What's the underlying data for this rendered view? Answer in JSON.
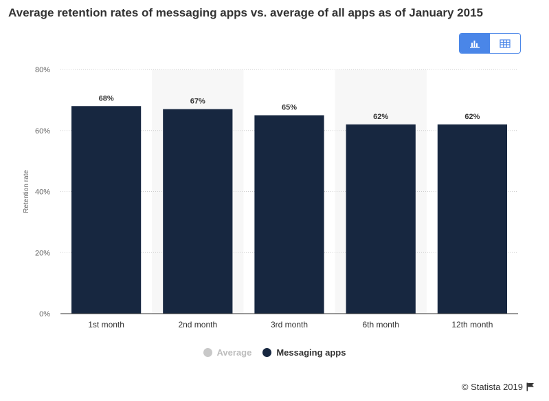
{
  "title": "Average retention rates of messaging apps vs. average of all apps as of January 2015",
  "credit": "© Statista 2019",
  "toolbar": {
    "active_view": "chart",
    "icons": [
      "bar-chart-icon",
      "table-icon"
    ],
    "accent_color": "#4a86e8"
  },
  "legend": [
    {
      "name": "Average",
      "color": "#c8c8c8",
      "text_color": "#bdbdbd"
    },
    {
      "name": "Messaging apps",
      "color": "#172740",
      "text_color": "#333333"
    }
  ],
  "chart_data": {
    "type": "bar",
    "title": "Average retention rates of messaging apps vs. average of all apps as of January 2015",
    "xlabel": "",
    "ylabel": "Retention rate",
    "ylim": [
      0,
      80
    ],
    "yticks": [
      0,
      20,
      40,
      60,
      80
    ],
    "ytick_labels": [
      "0%",
      "20%",
      "40%",
      "60%",
      "80%"
    ],
    "categories": [
      "1st month",
      "2nd month",
      "3rd month",
      "6th month",
      "12th month"
    ],
    "series": [
      {
        "name": "Messaging apps",
        "color": "#172740",
        "values": [
          68,
          67,
          65,
          62,
          62
        ],
        "labels": [
          "68%",
          "67%",
          "65%",
          "62%",
          "62%"
        ]
      }
    ],
    "grid": true,
    "legend_position": "bottom"
  }
}
